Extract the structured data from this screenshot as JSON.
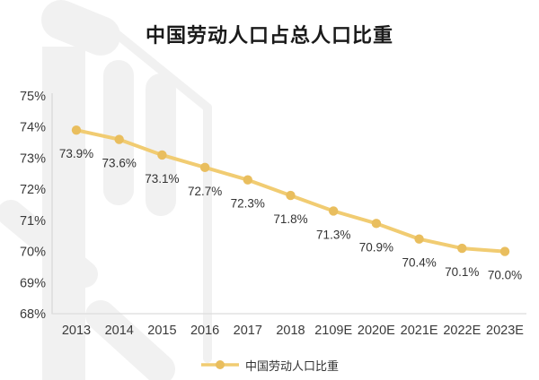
{
  "title": "中国劳动人口占总人口比重",
  "chart_data": {
    "type": "line",
    "title": "中国劳动人口占总人口比重",
    "categories": [
      "2013",
      "2014",
      "2015",
      "2016",
      "2017",
      "2018",
      "2109E",
      "2020E",
      "2021E",
      "2022E",
      "2023E"
    ],
    "series": [
      {
        "name": "中国劳动人口比重",
        "values": [
          73.9,
          73.6,
          73.1,
          72.7,
          72.3,
          71.8,
          71.3,
          70.9,
          70.4,
          70.1,
          70.0
        ]
      }
    ],
    "data_labels": [
      "73.9%",
      "73.6%",
      "73.1%",
      "72.7%",
      "72.3%",
      "71.8%",
      "71.3%",
      "70.9%",
      "70.4%",
      "70.1%",
      "70.0%"
    ],
    "ylabel": "",
    "xlabel": "",
    "ylim": [
      68,
      75
    ],
    "yticks": [
      "75%",
      "74%",
      "73%",
      "72%",
      "71%",
      "70%",
      "69%",
      "68%"
    ],
    "grid": false,
    "legend_position": "bottom",
    "colors": {
      "line": "#F1CC72",
      "marker": "#E9BE5E",
      "axis": "#DCDCDC",
      "text": "#3a3a3a",
      "title": "#1a1a1a",
      "watermark": "#F1F1F1"
    }
  }
}
